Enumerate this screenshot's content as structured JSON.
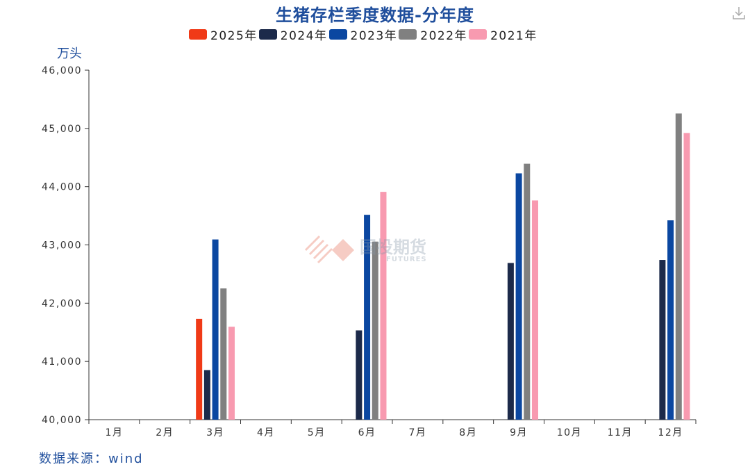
{
  "header": {
    "title": "生猪存栏季度数据-分年度",
    "unit": "万头"
  },
  "footer": {
    "source": "数据来源：wind"
  },
  "watermark": {
    "text": "国投期货",
    "subtext": "FUTURES"
  },
  "icons": {
    "download": "download-icon"
  },
  "chart_data": {
    "type": "bar",
    "categories": [
      "1月",
      "2月",
      "3月",
      "4月",
      "5月",
      "6月",
      "7月",
      "8月",
      "9月",
      "10月",
      "11月",
      "12月"
    ],
    "ylim": [
      40000,
      46000
    ],
    "yticks": [
      "40,000",
      "41,000",
      "42,000",
      "43,000",
      "44,000",
      "45,000",
      "46,000"
    ],
    "legend_position": "top-center",
    "grid": false,
    "series": [
      {
        "name": "2025年",
        "color": "#f03a17",
        "values": [
          null,
          null,
          41731,
          null,
          null,
          null,
          null,
          null,
          null,
          null,
          null,
          null
        ]
      },
      {
        "name": "2024年",
        "color": "#1c2a4a",
        "values": [
          null,
          null,
          40850,
          null,
          null,
          41533,
          null,
          null,
          42690,
          null,
          null,
          42743
        ]
      },
      {
        "name": "2023年",
        "color": "#0b47a1",
        "values": [
          null,
          null,
          43094,
          null,
          null,
          43517,
          null,
          null,
          44229,
          null,
          null,
          43422
        ]
      },
      {
        "name": "2022年",
        "color": "#808080",
        "values": [
          null,
          null,
          42253,
          null,
          null,
          43057,
          null,
          null,
          44394,
          null,
          null,
          45256
        ]
      },
      {
        "name": "2021年",
        "color": "#f89ab0",
        "values": [
          null,
          null,
          41595,
          null,
          null,
          43911,
          null,
          null,
          43764,
          null,
          null,
          44922
        ]
      }
    ]
  }
}
